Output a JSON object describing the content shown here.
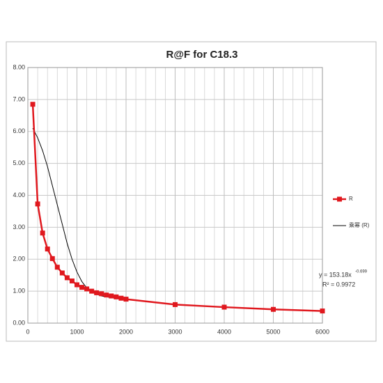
{
  "chart_data": {
    "type": "line",
    "title": "R@F  for C18.3",
    "x": [
      100,
      200,
      300,
      400,
      500,
      600,
      700,
      800,
      900,
      1000,
      1100,
      1200,
      1300,
      1400,
      1500,
      1600,
      1700,
      1800,
      1900,
      2000,
      3000,
      4000,
      5000,
      6000
    ],
    "series": [
      {
        "name": "R",
        "color": "#e0181e",
        "marker": "square",
        "values": [
          6.85,
          3.73,
          2.82,
          2.32,
          2.02,
          1.75,
          1.57,
          1.42,
          1.32,
          1.2,
          1.12,
          1.07,
          1.0,
          0.95,
          0.92,
          0.88,
          0.85,
          0.82,
          0.78,
          0.75,
          0.58,
          0.5,
          0.43,
          0.38
        ]
      },
      {
        "name": "乘幂 (R)",
        "color": "#000000",
        "marker": "none",
        "values": [
          6.1,
          5.8,
          5.4,
          4.9,
          4.3,
          3.7,
          3.1,
          2.5,
          2.0,
          1.6,
          1.3,
          1.1,
          0.98,
          0.9,
          0.85,
          0.82,
          0.8,
          0.78,
          0.76,
          0.74,
          0.58,
          0.5,
          0.43,
          0.38
        ]
      }
    ],
    "xlim": [
      0,
      6000
    ],
    "xticks": [
      0,
      1000,
      2000,
      3000,
      4000,
      5000,
      6000
    ],
    "xgrid_step": 200,
    "ylim": [
      0,
      8
    ],
    "yticks": [
      {
        "value": 0,
        "label": "0.00"
      },
      {
        "value": 1,
        "label": "1.00"
      },
      {
        "value": 2,
        "label": "2.00"
      },
      {
        "value": 3,
        "label": "3.00"
      },
      {
        "value": 4,
        "label": "4.00"
      },
      {
        "value": 5,
        "label": "5.00"
      },
      {
        "value": 6,
        "label": "6.00"
      },
      {
        "value": 7,
        "label": "7.00"
      },
      {
        "value": 8,
        "label": "8.00"
      }
    ],
    "grid": true,
    "legend": "right",
    "annotation": {
      "equation": "y = 153.18x",
      "exponent": "-0.699",
      "r2": "R² = 0.9972"
    }
  }
}
